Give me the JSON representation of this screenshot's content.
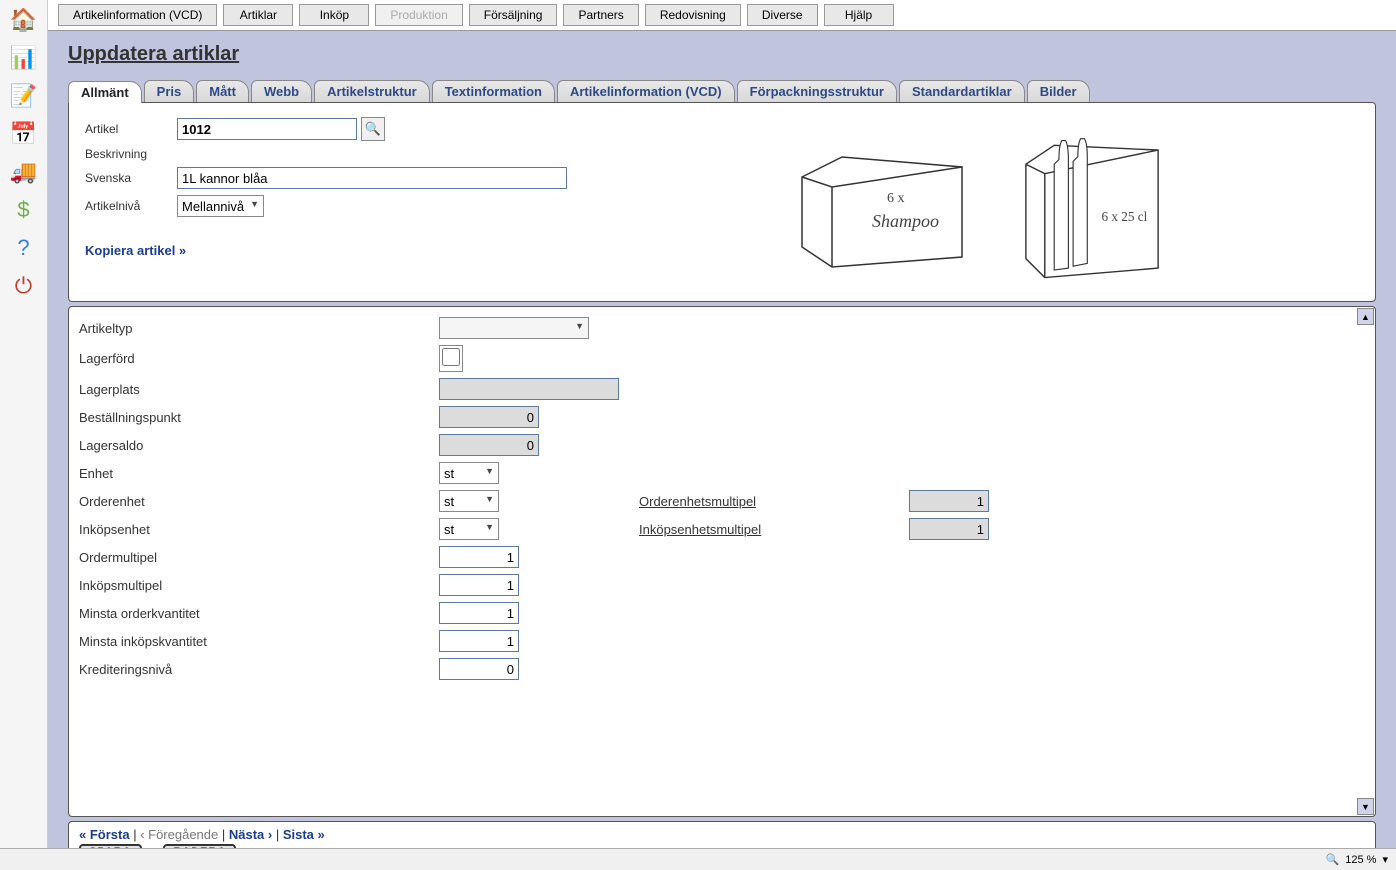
{
  "topMenu": [
    "Artikelinformation (VCD)",
    "Artiklar",
    "Inköp",
    "Produktion",
    "Försäljning",
    "Partners",
    "Redovisning",
    "Diverse",
    "Hjälp"
  ],
  "topMenuDisabledIndex": 3,
  "pageTitle": "Uppdatera artiklar",
  "tabs": [
    "Allmänt",
    "Pris",
    "Mått",
    "Webb",
    "Artikelstruktur",
    "Textinformation",
    "Artikelinformation (VCD)",
    "Förpackningsstruktur",
    "Standardartiklar",
    "Bilder"
  ],
  "activeTab": 0,
  "form": {
    "artikelLabel": "Artikel",
    "artikelValue": "1012",
    "beskrivningLabel": "Beskrivning",
    "svenskaLabel": "Svenska",
    "svenskaValue": "1L kannor blåa",
    "artikelnivaLabel": "Artikelnivå",
    "artikelnivaValue": "Mellannivå",
    "copyLink": "Kopiera artikel »"
  },
  "illus": {
    "boxLabel1": "6 x",
    "boxLabel2": "Shampoo",
    "packLabel": "6 x 25 cl"
  },
  "lower": {
    "artikeltyp": {
      "label": "Artikeltyp",
      "value": ""
    },
    "lagerford": {
      "label": "Lagerförd",
      "checked": false
    },
    "lagerplats": {
      "label": "Lagerplats",
      "value": ""
    },
    "bestallningspunkt": {
      "label": "Beställningspunkt",
      "value": "0"
    },
    "lagersaldo": {
      "label": "Lagersaldo",
      "value": "0"
    },
    "enhet": {
      "label": "Enhet",
      "value": "st"
    },
    "orderenhet": {
      "label": "Orderenhet",
      "value": "st"
    },
    "orderenhetsmultipel": {
      "label": "Orderenhetsmultipel",
      "value": "1"
    },
    "inkopsenhet": {
      "label": "Inköpsenhet",
      "value": "st"
    },
    "inkopsenhetsmultipel": {
      "label": "Inköpsenhetsmultipel",
      "value": "1"
    },
    "ordermultipel": {
      "label": "Ordermultipel",
      "value": "1"
    },
    "inkopsmultipel": {
      "label": "Inköpsmultipel",
      "value": "1"
    },
    "minstaorder": {
      "label": "Minsta orderkvantitet",
      "value": "1"
    },
    "minstainkop": {
      "label": "Minsta inköpskvantitet",
      "value": "1"
    },
    "kreditering": {
      "label": "Krediteringsnivå",
      "value": "0"
    }
  },
  "footer": {
    "first": "« Första",
    "prev": "‹ Föregående",
    "next": "Nästa ›",
    "last": "Sista »",
    "save": "SPARA",
    "delete": "RADERA"
  },
  "status": {
    "zoom": "125 %"
  },
  "colors": {
    "pageBg": "#c0c5dd",
    "linkBlue": "#1a3e8c",
    "inputBorder": "#5b7aa0"
  }
}
